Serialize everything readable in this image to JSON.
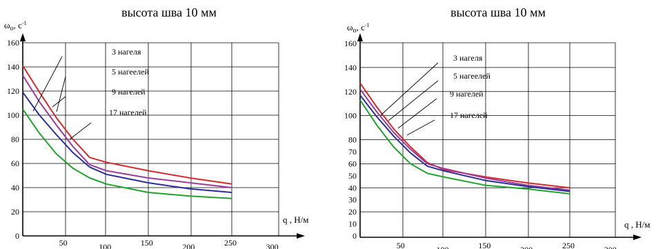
{
  "chart_data": [
    {
      "type": "line",
      "title": "высота шва 10 мм",
      "ylabel_main": "ω",
      "ylabel_sub": "o",
      "ylabel_unit": ", с",
      "ylabel_sup": "-1",
      "xlabel": "q  , Н/м",
      "x_ticks": [
        "50",
        "100",
        "150",
        "200",
        "250",
        "300"
      ],
      "y_ticks": [
        "0",
        "20",
        "40",
        "60",
        "80",
        "100",
        "120",
        "140",
        "160"
      ],
      "xlim": [
        0,
        300
      ],
      "ylim": [
        0,
        160
      ],
      "grid": true,
      "series": [
        {
          "name": "3 нагеля",
          "color": "#d42a2a",
          "x": [
            0,
            20,
            40,
            60,
            80,
            100,
            150,
            200,
            250
          ],
          "y": [
            141,
            119,
            98,
            80,
            65,
            61,
            54,
            48,
            43
          ]
        },
        {
          "name": "5 нагеелей",
          "color": "#a03a9a",
          "x": [
            0,
            20,
            40,
            60,
            80,
            100,
            150,
            200,
            250
          ],
          "y": [
            133,
            111,
            92,
            74,
            59,
            54,
            48,
            44,
            40
          ]
        },
        {
          "name": "9 нагелей",
          "color": "#2b2d9a",
          "x": [
            0,
            20,
            40,
            60,
            80,
            100,
            150,
            200,
            250
          ],
          "y": [
            119,
            100,
            84,
            69,
            57,
            51,
            44,
            39,
            36
          ]
        },
        {
          "name": "17 нагелей",
          "color": "#1fa32a",
          "x": [
            0,
            20,
            40,
            60,
            80,
            100,
            150,
            200,
            250
          ],
          "y": [
            105,
            85,
            68,
            56,
            48,
            43,
            36,
            33,
            31
          ]
        }
      ]
    },
    {
      "type": "line",
      "title": "высота шва 10 мм",
      "ylabel_main": "ω",
      "ylabel_sub": "o",
      "ylabel_unit": ", с",
      "ylabel_sup": "-1",
      "xlabel": "q  , Н/м",
      "x_ticks": [
        "50",
        "100",
        "150",
        "200",
        "250",
        "300"
      ],
      "y_ticks": [
        "0",
        "10",
        "20",
        "30",
        "40",
        "50",
        "60",
        "70",
        "80",
        "100",
        "120",
        "140",
        "160"
      ],
      "xlim": [
        0,
        300
      ],
      "ylim": [
        0,
        160
      ],
      "grid": true,
      "series": [
        {
          "name": "3 нагеля",
          "color": "#d42a2a",
          "x": [
            0,
            20,
            40,
            60,
            80,
            100,
            150,
            200,
            250
          ],
          "y": [
            127,
            107,
            89,
            74,
            61,
            55,
            49,
            44,
            40
          ]
        },
        {
          "name": "5 нагеелей",
          "color": "#a03a9a",
          "x": [
            0,
            20,
            40,
            60,
            80,
            100,
            150,
            200,
            250
          ],
          "y": [
            122,
            103,
            86,
            72,
            60,
            56,
            48,
            42,
            38
          ]
        },
        {
          "name": "9 нагелей",
          "color": "#2b2d9a",
          "x": [
            0,
            20,
            40,
            60,
            80,
            100,
            150,
            200,
            250
          ],
          "y": [
            117,
            99,
            83,
            69,
            58,
            54,
            46,
            41,
            37
          ]
        },
        {
          "name": "17 нагелей",
          "color": "#1fa32a",
          "x": [
            0,
            20,
            40,
            60,
            80,
            100,
            150,
            200,
            250
          ],
          "y": [
            113,
            92,
            74,
            60,
            52,
            49,
            42,
            39,
            35
          ]
        }
      ]
    }
  ]
}
